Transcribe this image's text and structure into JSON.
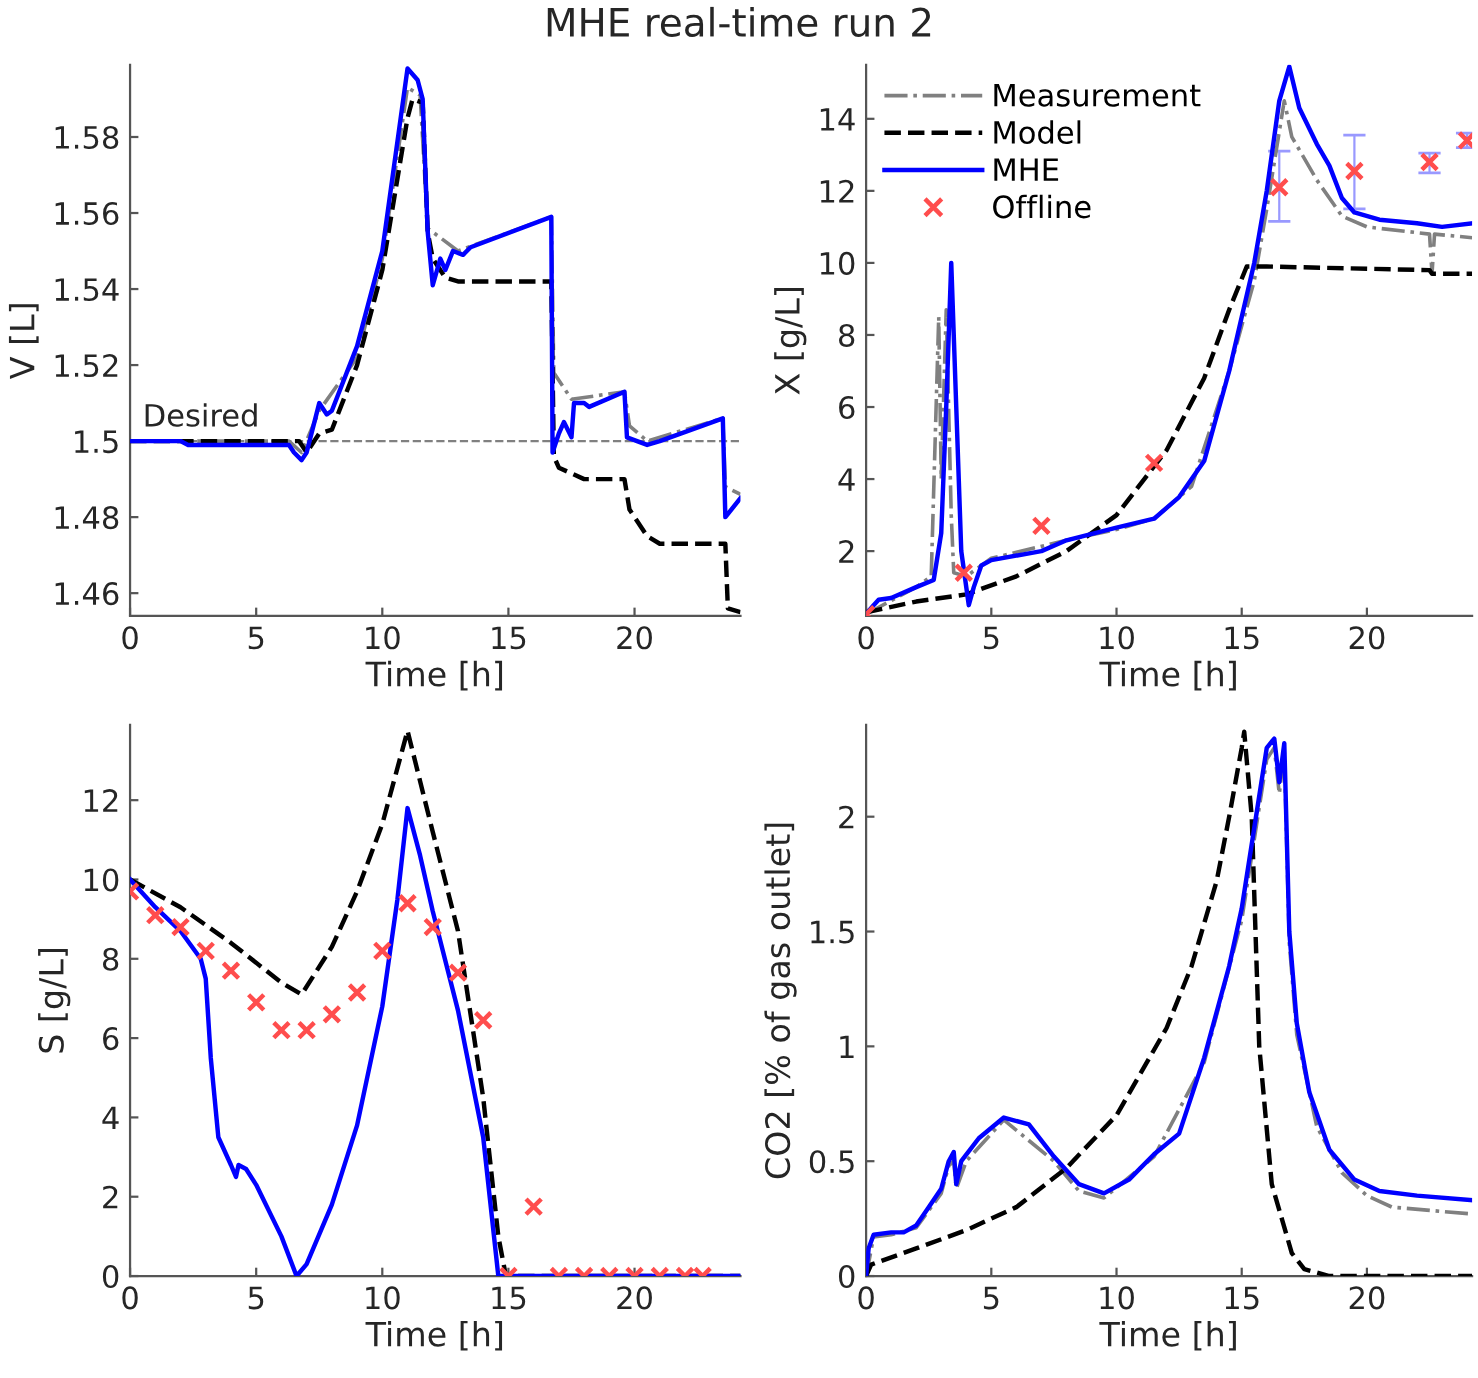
{
  "chart_data": [
    {
      "type": "line",
      "title": "MHE real-time run 2",
      "xlabel": "Time [h]",
      "ylabel": "V [L]",
      "xlim": [
        0,
        24.2
      ],
      "xticks": [
        0,
        5,
        10,
        15,
        20
      ],
      "ylim": [
        1.454,
        1.599
      ],
      "yticks": [
        {
          "value": 1.46,
          "label": "1.46"
        },
        {
          "value": 1.48,
          "label": "1.48"
        },
        {
          "value": 1.5,
          "label": "1.5"
        },
        {
          "value": 1.52,
          "label": "1.52"
        },
        {
          "value": 1.54,
          "label": "1.54"
        },
        {
          "value": 1.56,
          "label": "1.56"
        },
        {
          "value": 1.58,
          "label": "1.58"
        }
      ],
      "grid": false,
      "legend": false,
      "ref_lines": [
        {
          "axis": "y",
          "value": 1.5,
          "label": "Desired",
          "color": "#808080",
          "line_style": "dashed"
        }
      ],
      "series": [
        {
          "type": "line",
          "color": "#808080",
          "line_style": "dashdot",
          "x": [
            0,
            6.3,
            6.8,
            7.5,
            9,
            10,
            11,
            11.5,
            11.8,
            13,
            16.7,
            16.8,
            17.5,
            19.6,
            19.8,
            20.5,
            23.5,
            23.6,
            24.2
          ],
          "values": [
            1.5,
            1.5,
            1.497,
            1.508,
            1.522,
            1.548,
            1.593,
            1.591,
            1.556,
            1.55,
            1.559,
            1.518,
            1.511,
            1.513,
            1.504,
            1.5,
            1.506,
            1.488,
            1.486
          ]
        },
        {
          "type": "line",
          "color": "#000000",
          "line_style": "dashed",
          "x": [
            0,
            6.7,
            7,
            7.5,
            8,
            9,
            10,
            11,
            11.2,
            11.6,
            11.8,
            12,
            12.5,
            13,
            16.7,
            16.8,
            17,
            18,
            19.6,
            19.8,
            20.5,
            21,
            23.6,
            23.7,
            24.2
          ],
          "values": [
            1.5,
            1.5,
            1.497,
            1.502,
            1.503,
            1.52,
            1.545,
            1.585,
            1.59,
            1.589,
            1.555,
            1.548,
            1.543,
            1.542,
            1.542,
            1.496,
            1.493,
            1.49,
            1.49,
            1.482,
            1.475,
            1.473,
            1.473,
            1.456,
            1.455
          ]
        },
        {
          "type": "line",
          "color": "#0000ff",
          "line_style": "solid",
          "x": [
            0,
            2,
            2.3,
            6.3,
            6.5,
            6.8,
            7,
            7.5,
            7.8,
            8,
            9,
            10,
            11,
            11.4,
            11.6,
            11.8,
            12,
            12.3,
            12.5,
            12.8,
            13.2,
            13.5,
            16.7,
            16.75,
            17,
            17.2,
            17.5,
            17.6,
            18,
            18.2,
            19.6,
            19.7,
            20.5,
            21,
            23.5,
            23.6,
            24.2
          ],
          "values": [
            1.5,
            1.5,
            1.499,
            1.499,
            1.497,
            1.495,
            1.497,
            1.51,
            1.507,
            1.508,
            1.525,
            1.55,
            1.598,
            1.595,
            1.59,
            1.555,
            1.541,
            1.548,
            1.545,
            1.55,
            1.549,
            1.551,
            1.559,
            1.497,
            1.502,
            1.505,
            1.501,
            1.51,
            1.51,
            1.509,
            1.513,
            1.501,
            1.499,
            1.5,
            1.506,
            1.48,
            1.485
          ]
        }
      ]
    },
    {
      "type": "line",
      "xlabel": "Time [h]",
      "ylabel": "X [g/L]",
      "xlim": [
        0,
        24.2
      ],
      "xticks": [
        0,
        5,
        10,
        15,
        20
      ],
      "ylim": [
        0.2,
        15.5
      ],
      "yticks": [
        2,
        4,
        6,
        8,
        10,
        12,
        14
      ],
      "grid": false,
      "legend": "top left",
      "series": [
        {
          "type": "line",
          "name": "Measurement",
          "color": "#808080",
          "line_style": "dashdot",
          "x": [
            0,
            2,
            2.6,
            2.9,
            3.0,
            3.2,
            3.4,
            3.5,
            4,
            5,
            8,
            10,
            11.5,
            13,
            14.5,
            15.5,
            16,
            16.7,
            17,
            18,
            19,
            20,
            22.5,
            22.6,
            22.7,
            24.2
          ],
          "values": [
            0.25,
            1,
            1.3,
            8.5,
            4,
            8.7,
            3,
            1.4,
            1.3,
            1.8,
            2.3,
            2.6,
            2.9,
            3.8,
            7,
            9.5,
            11.5,
            14.5,
            13.5,
            12.3,
            11.3,
            11,
            10.8,
            9.7,
            10.8,
            10.7
          ]
        },
        {
          "type": "line",
          "name": "Model",
          "color": "#000000",
          "line_style": "dashed",
          "x": [
            0,
            2,
            4,
            6,
            8,
            10,
            12,
            13.5,
            14.5,
            15.2,
            16,
            22.5,
            22.6,
            24.2
          ],
          "values": [
            0.3,
            0.6,
            0.8,
            1.3,
            2.0,
            3.0,
            4.8,
            6.8,
            8.7,
            9.9,
            9.9,
            9.8,
            9.7,
            9.7
          ]
        },
        {
          "type": "line",
          "name": "MHE",
          "color": "#0000ff",
          "line_style": "solid",
          "x": [
            0,
            0.3,
            0.5,
            1,
            2,
            2.7,
            3,
            3.2,
            3.4,
            3.6,
            3.8,
            4.1,
            4.3,
            4.6,
            5,
            7,
            8,
            10,
            11.5,
            12.5,
            13.5,
            14.5,
            15.5,
            16,
            16.5,
            16.9,
            17.3,
            18,
            18.5,
            19,
            19.5,
            20.5,
            22,
            23,
            24.2
          ],
          "values": [
            0.25,
            0.5,
            0.65,
            0.7,
            1.0,
            1.2,
            2.5,
            6,
            10,
            6,
            2,
            0.5,
            1,
            1.6,
            1.75,
            2.0,
            2.3,
            2.65,
            2.9,
            3.5,
            4.5,
            7,
            10,
            12,
            14.5,
            15.45,
            14.3,
            13.3,
            12.7,
            11.8,
            11.4,
            11.2,
            11.1,
            11.0,
            11.1
          ]
        },
        {
          "type": "scatter",
          "name": "Offline",
          "color": "#ff4d4d",
          "marker": "cross",
          "x": [
            0,
            3.9,
            7,
            11.5,
            16.5,
            19.5,
            22.5,
            24
          ],
          "values": [
            0.25,
            1.4,
            2.7,
            4.45,
            12.1,
            12.55,
            12.8,
            13.4
          ],
          "errors": [
            null,
            null,
            null,
            null,
            [
              11.15,
              13.1
            ],
            [
              11.5,
              13.55
            ],
            [
              12.5,
              13.05
            ],
            [
              13.2,
              13.6
            ]
          ]
        }
      ]
    },
    {
      "type": "line",
      "xlabel": "Time [h]",
      "ylabel": "S [g/L]",
      "xlim": [
        0,
        24.2
      ],
      "xticks": [
        0,
        5,
        10,
        15,
        20
      ],
      "ylim": [
        0,
        13.9
      ],
      "yticks": [
        0,
        2,
        4,
        6,
        8,
        10,
        12
      ],
      "grid": false,
      "legend": false,
      "series": [
        {
          "type": "line",
          "color": "#000000",
          "line_style": "dashed",
          "x": [
            0,
            2,
            4,
            6,
            6.8,
            8,
            9,
            10,
            11,
            12,
            13,
            14,
            14.6,
            14.9,
            24.2
          ],
          "values": [
            10,
            9.3,
            8.4,
            7.4,
            7.1,
            8.3,
            9.7,
            11.4,
            13.75,
            11.2,
            8.7,
            4.5,
            1,
            0,
            0
          ]
        },
        {
          "type": "line",
          "color": "#0000ff",
          "line_style": "solid",
          "x": [
            0,
            1,
            2,
            2.8,
            3,
            3.2,
            3.5,
            4,
            4.2,
            4.3,
            4.6,
            5,
            6,
            6.6,
            7,
            8,
            9,
            10,
            10.6,
            11,
            11.5,
            12,
            13,
            14,
            14.6,
            24.2
          ],
          "values": [
            10,
            9.3,
            8.7,
            8,
            7.5,
            5.5,
            3.5,
            2.8,
            2.5,
            2.8,
            2.7,
            2.3,
            1,
            0,
            0.3,
            1.8,
            3.8,
            6.8,
            9.5,
            11.8,
            10.6,
            9.2,
            6.7,
            3.5,
            0,
            0
          ]
        },
        {
          "type": "scatter",
          "color": "#ff4d4d",
          "marker": "cross",
          "x": [
            0,
            1,
            2,
            3,
            4,
            5,
            6,
            7,
            8,
            9,
            10,
            11,
            12,
            13,
            14,
            15,
            16,
            17,
            18,
            19,
            20,
            21,
            22,
            22.7
          ],
          "values": [
            9.7,
            9.1,
            8.8,
            8.2,
            7.7,
            6.9,
            6.2,
            6.2,
            6.6,
            7.15,
            8.2,
            9.4,
            8.8,
            7.65,
            6.45,
            0,
            1.75,
            0,
            0,
            0,
            0,
            0,
            0,
            0
          ]
        }
      ]
    },
    {
      "type": "line",
      "xlabel": "Time [h]",
      "ylabel": "CO2 [% of gas outlet]",
      "xlim": [
        0,
        24.2
      ],
      "xticks": [
        0,
        5,
        10,
        15,
        20
      ],
      "ylim": [
        0,
        2.4
      ],
      "yticks": [
        0,
        0.5,
        1,
        1.5,
        2
      ],
      "grid": false,
      "legend": false,
      "series": [
        {
          "type": "line",
          "color": "#808080",
          "line_style": "dashdot",
          "x": [
            0,
            0.3,
            1,
            2,
            3,
            3.3,
            3.5,
            3.6,
            4,
            5.5,
            7.5,
            8.5,
            9.5,
            11.5,
            13.5,
            15,
            16,
            16.3,
            16.5,
            16.7,
            16.9,
            17.2,
            18,
            19,
            20,
            21,
            24.2
          ],
          "values": [
            0,
            0.17,
            0.18,
            0.21,
            0.36,
            0.48,
            0.5,
            0.38,
            0.5,
            0.68,
            0.5,
            0.37,
            0.34,
            0.52,
            0.93,
            1.55,
            2.25,
            2.3,
            2.1,
            2.28,
            1.45,
            1.05,
            0.65,
            0.45,
            0.35,
            0.3,
            0.27
          ]
        },
        {
          "type": "line",
          "color": "#000000",
          "line_style": "dashed",
          "x": [
            0,
            0.2,
            2,
            4,
            6,
            8,
            10,
            12,
            13,
            14,
            14.5,
            15,
            15.1,
            15.4,
            15.7,
            16.2,
            17,
            17.5,
            18.5,
            24.2
          ],
          "values": [
            0,
            0.05,
            0.12,
            0.2,
            0.3,
            0.47,
            0.7,
            1.08,
            1.35,
            1.72,
            2.0,
            2.3,
            2.37,
            2.0,
            1.0,
            0.4,
            0.1,
            0.03,
            0,
            0
          ]
        },
        {
          "type": "line",
          "color": "#0000ff",
          "line_style": "solid",
          "x": [
            0,
            0.1,
            0.3,
            1,
            1.5,
            2,
            2.5,
            3,
            3.3,
            3.5,
            3.6,
            3.8,
            4.5,
            5.5,
            6.5,
            7.5,
            8.5,
            9.5,
            10.5,
            11.5,
            12.5,
            13.5,
            14.5,
            15,
            15.5,
            16,
            16.3,
            16.5,
            16.7,
            16.9,
            17.2,
            17.7,
            18.5,
            19.5,
            20.5,
            22,
            24.2
          ],
          "values": [
            0,
            0.12,
            0.18,
            0.19,
            0.19,
            0.22,
            0.3,
            0.38,
            0.5,
            0.54,
            0.4,
            0.5,
            0.6,
            0.69,
            0.66,
            0.52,
            0.4,
            0.36,
            0.42,
            0.53,
            0.62,
            0.95,
            1.35,
            1.6,
            1.95,
            2.3,
            2.34,
            2.15,
            2.32,
            1.5,
            1.1,
            0.8,
            0.55,
            0.42,
            0.37,
            0.35,
            0.33
          ]
        }
      ]
    }
  ]
}
